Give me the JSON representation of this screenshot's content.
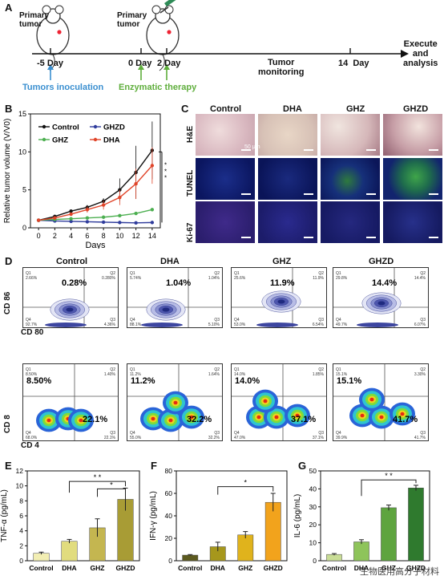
{
  "panel_labels": {
    "A": "A",
    "B": "B",
    "C": "C",
    "D": "D",
    "E": "E",
    "F": "F",
    "G": "G"
  },
  "timeline": {
    "mouse1_label": "Primary\ntumor",
    "mouse2_label": "Primary\ntumor",
    "ticks": [
      {
        "label": "-5 Day"
      },
      {
        "label": "0 Day"
      },
      {
        "label": "2 Day"
      },
      {
        "label": "14  Day"
      }
    ],
    "monitoring": "Tumor\nmonitoring",
    "endpoint": "Execute\nand\nanalysis",
    "inoculation": "Tumors inoculation",
    "therapy": "Enzymatic therapy",
    "colors": {
      "inoculation": "#3a8fd0",
      "therapy": "#5fae3c"
    }
  },
  "panelC": {
    "columns": [
      "Control",
      "DHA",
      "GHZ",
      "GHZD"
    ],
    "rows": [
      "H&E",
      "TUNEL",
      "Ki-67"
    ],
    "scale_label": "50 μm"
  },
  "panelD": {
    "columns": [
      "Control",
      "DHA",
      "GHZ",
      "GHZD"
    ],
    "row1": {
      "ylabel": "CD 86",
      "xlabel": "CD 80",
      "q2_big": [
        "0.28%",
        "1.04%",
        "11.9%",
        "14.4%"
      ],
      "q1": [
        "Q1\n2.66%",
        "Q1\n5.74%",
        "Q1\n25.6%",
        "Q1\n29.8%"
      ],
      "q2": [
        "Q2\n0.280%",
        "Q2\n1.04%",
        "Q2\n11.9%",
        "Q2\n14.4%"
      ],
      "q3": [
        "Q3\n4.36%",
        "Q3\n5.10%",
        "Q3\n6.54%",
        "Q3\n6.07%"
      ],
      "q4": [
        "Q4\n92.7%",
        "Q4\n88.1%",
        "Q4\n53.0%",
        "Q4\n49.7%"
      ]
    },
    "row2": {
      "ylabel": "CD 8",
      "xlabel": "CD 4",
      "q1_big": [
        "8.50%",
        "11.2%",
        "14.0%",
        "15.1%"
      ],
      "q3_big": [
        "22.1%",
        "32.2%",
        "37.1%",
        "41.7%"
      ],
      "q1": [
        "Q1\n8.50%",
        "Q1\n11.2%",
        "Q1\n14.0%",
        "Q1\n15.1%"
      ],
      "q2": [
        "Q2\n1.40%",
        "Q2\n1.64%",
        "Q2\n1.85%",
        "Q2\n3.30%"
      ],
      "q3": [
        "Q3\n22.1%",
        "Q3\n32.2%",
        "Q3\n37.1%",
        "Q3\n41.7%"
      ],
      "q4": [
        "Q4\n68.0%",
        "Q4\n55.0%",
        "Q4\n47.0%",
        "Q4\n39.9%"
      ]
    }
  },
  "watermark": "生物医用高分子材料",
  "chart_data": [
    {
      "type": "line",
      "panel": "B",
      "xlabel": "Days",
      "ylabel": "Relative tumor volume (V/V0)",
      "x": [
        0,
        2,
        4,
        6,
        8,
        10,
        12,
        14
      ],
      "xlim": [
        -1,
        15
      ],
      "ylim": [
        0,
        15
      ],
      "xticks": [
        "0",
        "2",
        "4",
        "6",
        "8",
        "10",
        "12",
        "14"
      ],
      "yticks": [
        "0",
        "5",
        "10",
        "15"
      ],
      "series": [
        {
          "name": "Control",
          "color": "#111111",
          "values": [
            1.0,
            1.5,
            2.2,
            2.7,
            3.5,
            5.0,
            7.3,
            10.2
          ]
        },
        {
          "name": "GHZD",
          "color": "#2f3c9c",
          "values": [
            1.0,
            0.9,
            0.85,
            0.8,
            0.75,
            0.7,
            0.65,
            0.7
          ]
        },
        {
          "name": "GHZ",
          "color": "#4caf50",
          "values": [
            1.0,
            1.1,
            1.2,
            1.3,
            1.4,
            1.6,
            1.9,
            2.4
          ]
        },
        {
          "name": "DHA",
          "color": "#e0452a",
          "values": [
            1.0,
            1.3,
            1.8,
            2.4,
            3.0,
            4.0,
            5.8,
            8.2
          ]
        }
      ],
      "significance": [
        "*",
        "*",
        "*"
      ]
    },
    {
      "type": "bar",
      "panel": "E",
      "ylabel": "TNF-α (pg/mL)",
      "categories": [
        "Control",
        "DHA",
        "GHZ",
        "GHZD"
      ],
      "values": [
        1.0,
        2.6,
        4.4,
        8.2
      ],
      "errors": [
        0.15,
        0.25,
        1.2,
        1.5
      ],
      "colors": [
        "#f2eeb3",
        "#e1dc7e",
        "#c4b650",
        "#a89c35"
      ],
      "ylim": [
        0,
        12
      ],
      "yticks": [
        "0",
        "2",
        "4",
        "6",
        "8",
        "10",
        "12"
      ],
      "significance": [
        "* *",
        "*"
      ]
    },
    {
      "type": "bar",
      "panel": "F",
      "ylabel": "IFN-γ (pg/mL)",
      "categories": [
        "Control",
        "DHA",
        "GHZ",
        "GHZD"
      ],
      "values": [
        5,
        12.5,
        23,
        52
      ],
      "errors": [
        0.5,
        4,
        3,
        8
      ],
      "colors": [
        "#5c5a1e",
        "#a6971c",
        "#e0b31c",
        "#f2a31c"
      ],
      "ylim": [
        0,
        80
      ],
      "yticks": [
        "0",
        "20",
        "40",
        "60",
        "80"
      ],
      "significance": [
        "*"
      ]
    },
    {
      "type": "bar",
      "panel": "G",
      "ylabel": "IL-6 (pg/mL)",
      "categories": [
        "Control",
        "DHA",
        "GHZ",
        "GHZD"
      ],
      "values": [
        3.5,
        10.5,
        29.5,
        40.5
      ],
      "errors": [
        0.5,
        1.2,
        1.5,
        1.5
      ],
      "colors": [
        "#c9dd96",
        "#8ec45a",
        "#5ea43f",
        "#2f7a2e"
      ],
      "ylim": [
        0,
        50
      ],
      "yticks": [
        "0",
        "10",
        "20",
        "30",
        "40",
        "50"
      ],
      "significance": [
        "* *"
      ]
    }
  ]
}
